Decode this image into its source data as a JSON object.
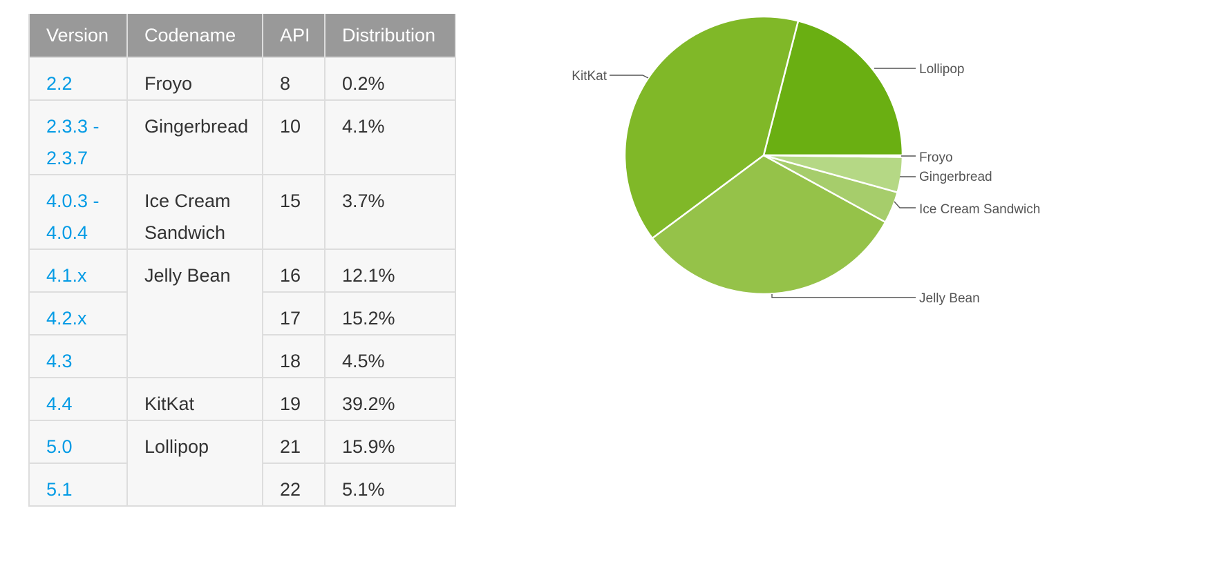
{
  "table": {
    "headers": [
      "Version",
      "Codename",
      "API",
      "Distribution"
    ],
    "rows": [
      {
        "version": [
          "2.2"
        ],
        "codename": [
          "Froyo"
        ],
        "api": "8",
        "distribution": "0.2%"
      },
      {
        "version": [
          "2.3.3 -",
          "2.3.7"
        ],
        "codename": [
          "Gingerbread"
        ],
        "api": "10",
        "distribution": "4.1%"
      },
      {
        "version": [
          "4.0.3 -",
          "4.0.4"
        ],
        "codename": [
          "Ice Cream",
          "Sandwich"
        ],
        "api": "15",
        "distribution": "3.7%"
      },
      {
        "version": [
          "4.1.x"
        ],
        "codename": [
          "Jelly Bean"
        ],
        "api": "16",
        "distribution": "12.1%"
      },
      {
        "version": [
          "4.2.x"
        ],
        "api": "17",
        "distribution": "15.2%"
      },
      {
        "version": [
          "4.3"
        ],
        "api": "18",
        "distribution": "4.5%"
      },
      {
        "version": [
          "4.4"
        ],
        "codename": [
          "KitKat"
        ],
        "api": "19",
        "distribution": "39.2%"
      },
      {
        "version": [
          "5.0"
        ],
        "codename": [
          "Lollipop"
        ],
        "api": "21",
        "distribution": "15.9%"
      },
      {
        "version": [
          "5.1"
        ],
        "api": "22",
        "distribution": "5.1%"
      }
    ]
  },
  "colors": {
    "header_bg": "#999999",
    "cell_bg": "#f7f7f7",
    "border": "#dddddd",
    "version_link": "#039be5"
  },
  "chart_data": {
    "type": "pie",
    "start": "3 o'clock",
    "direction": "counterclockwise",
    "slices": [
      {
        "label": "Lollipop",
        "value": 21.0,
        "color": "#6aaf12"
      },
      {
        "label": "KitKat",
        "value": 39.2,
        "color": "#80b828"
      },
      {
        "label": "Jelly Bean",
        "value": 31.8,
        "color": "#95c249"
      },
      {
        "label": "Ice Cream Sandwich",
        "value": 3.7,
        "color": "#a6cd6b"
      },
      {
        "label": "Gingerbread",
        "value": 4.1,
        "color": "#b5d885"
      },
      {
        "label": "Froyo",
        "value": 0.2,
        "color": "#c8e3a3"
      }
    ]
  }
}
